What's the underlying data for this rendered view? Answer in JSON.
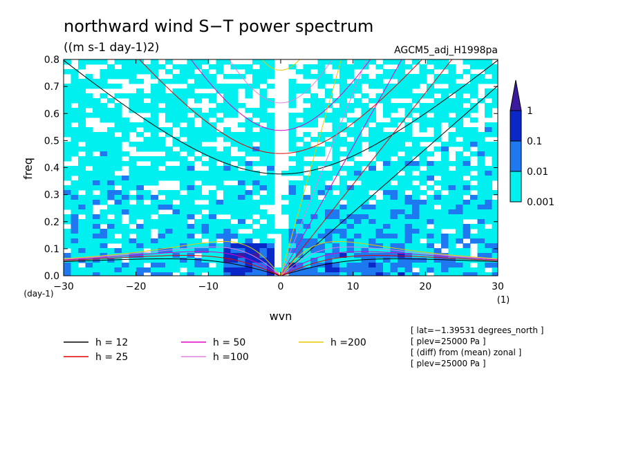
{
  "chart_data": {
    "type": "heatmap",
    "title": "northward wind S−T power spectrum",
    "subtitle": "((m s-1 day-1)2)",
    "run_label": "AGCM5_adj_H1998pa",
    "xlabel": "wvn",
    "ylabel": "freq",
    "x_unit": "(1)",
    "y_unit": "(day-1)",
    "xlim": [
      -30,
      30
    ],
    "ylim": [
      0,
      0.8
    ],
    "x_ticks": [
      "−30",
      "−20",
      "−10",
      "0",
      "10",
      "20",
      "30"
    ],
    "x_tick_values": [
      -30,
      -20,
      -10,
      0,
      10,
      20,
      30
    ],
    "y_ticks": [
      "0.0",
      "0.1",
      "0.2",
      "0.3",
      "0.4",
      "0.5",
      "0.6",
      "0.7",
      "0.8"
    ],
    "y_tick_values": [
      0,
      0.1,
      0.2,
      0.3,
      0.4,
      0.5,
      0.6,
      0.7,
      0.8
    ],
    "colorbar": {
      "levels": [
        "0.001",
        "0.01",
        "0.1",
        "1"
      ],
      "colors": [
        "#00f0f0",
        "#1e78f0",
        "#0a28c8",
        "#3c1aa0"
      ]
    },
    "dispersion_curves": {
      "legend": [
        {
          "label": "h = 12",
          "color": "#000000"
        },
        {
          "label": "h = 25",
          "color": "#e00000"
        },
        {
          "label": "h = 50",
          "color": "#e000c0"
        },
        {
          "label": "h =100",
          "color": "#e080e0"
        },
        {
          "label": "h =200",
          "color": "#e8c800"
        }
      ],
      "equivalent_depths_m": [
        12,
        25,
        50,
        100,
        200
      ]
    },
    "info_lines": [
      "[ lat=−1.39531 degrees_north ]",
      "[ plev=25000 Pa ]",
      "[ (diff) from (mean) zonal ]",
      "[ plev=25000 Pa ]"
    ]
  }
}
